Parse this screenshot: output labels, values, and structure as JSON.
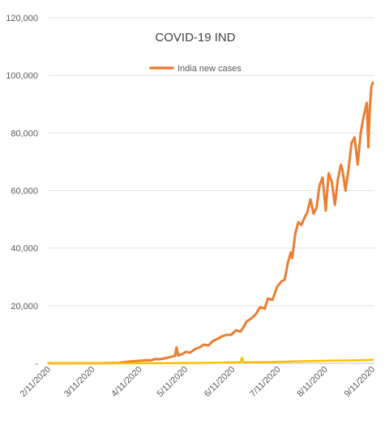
{
  "chart_data": {
    "type": "line",
    "title": "COVID-19 IND",
    "xlabel": "",
    "ylabel": "",
    "x_tick_labels": [
      "2/11/2020",
      "3/11/2020",
      "4/11/2020",
      "5/11/2020",
      "6/11/2020",
      "7/11/2020",
      "8/11/2020",
      "9/11/2020"
    ],
    "y_tick_labels": [
      "-",
      "20,000",
      "40,000",
      "60,000",
      "80,000",
      "100,000",
      "120,000"
    ],
    "ylim": [
      0,
      120000
    ],
    "xlim": [
      "2/11/2020",
      "9/12/2020"
    ],
    "grid": "horizontal",
    "legend": {
      "position": "top-center",
      "entries": [
        "India new cases"
      ]
    },
    "series": [
      {
        "name": "India new cases",
        "color": "#ED7D31",
        "points": [
          [
            "2/11/2020",
            0
          ],
          [
            "2/25/2020",
            0
          ],
          [
            "3/4/2020",
            20
          ],
          [
            "3/11/2020",
            10
          ],
          [
            "3/20/2020",
            50
          ],
          [
            "3/28/2020",
            150
          ],
          [
            "4/4/2020",
            600
          ],
          [
            "4/11/2020",
            900
          ],
          [
            "4/15/2020",
            1100
          ],
          [
            "4/18/2020",
            1000
          ],
          [
            "4/21/2020",
            1500
          ],
          [
            "4/24/2020",
            1400
          ],
          [
            "4/28/2020",
            1800
          ],
          [
            "5/1/2020",
            2200
          ],
          [
            "5/4/2020",
            2600
          ],
          [
            "5/5/2020",
            5500
          ],
          [
            "5/6/2020",
            2700
          ],
          [
            "5/9/2020",
            3200
          ],
          [
            "5/11/2020",
            4000
          ],
          [
            "5/14/2020",
            3700
          ],
          [
            "5/17/2020",
            4900
          ],
          [
            "5/20/2020",
            5500
          ],
          [
            "5/23/2020",
            6500
          ],
          [
            "5/26/2020",
            6200
          ],
          [
            "5/29/2020",
            7800
          ],
          [
            "6/1/2020",
            8500
          ],
          [
            "6/4/2020",
            9400
          ],
          [
            "6/7/2020",
            9900
          ],
          [
            "6/10/2020",
            9900
          ],
          [
            "6/13/2020",
            11500
          ],
          [
            "6/16/2020",
            11000
          ],
          [
            "6/18/2020",
            12500
          ],
          [
            "6/20/2020",
            14500
          ],
          [
            "6/23/2020",
            15500
          ],
          [
            "6/26/2020",
            17000
          ],
          [
            "6/29/2020",
            19500
          ],
          [
            "7/2/2020",
            19000
          ],
          [
            "7/4/2020",
            22500
          ],
          [
            "7/7/2020",
            22000
          ],
          [
            "7/10/2020",
            26500
          ],
          [
            "7/13/2020",
            28500
          ],
          [
            "7/15/2020",
            29000
          ],
          [
            "7/17/2020",
            34500
          ],
          [
            "7/19/2020",
            38500
          ],
          [
            "7/20/2020",
            36500
          ],
          [
            "7/22/2020",
            45000
          ],
          [
            "7/24/2020",
            49000
          ],
          [
            "7/26/2020",
            48000
          ],
          [
            "7/28/2020",
            50500
          ],
          [
            "7/30/2020",
            52500
          ],
          [
            "8/1/2020",
            57000
          ],
          [
            "8/3/2020",
            52000
          ],
          [
            "8/5/2020",
            54000
          ],
          [
            "8/7/2020",
            62000
          ],
          [
            "8/9/2020",
            64500
          ],
          [
            "8/11/2020",
            53000
          ],
          [
            "8/13/2020",
            66000
          ],
          [
            "8/15/2020",
            63000
          ],
          [
            "8/17/2020",
            55000
          ],
          [
            "8/19/2020",
            64000
          ],
          [
            "8/21/2020",
            69000
          ],
          [
            "8/22/2020",
            67000
          ],
          [
            "8/24/2020",
            60000
          ],
          [
            "8/26/2020",
            67500
          ],
          [
            "8/28/2020",
            76500
          ],
          [
            "8/30/2020",
            78500
          ],
          [
            "9/1/2020",
            69000
          ],
          [
            "9/3/2020",
            80000
          ],
          [
            "9/5/2020",
            86000
          ],
          [
            "9/7/2020",
            90500
          ],
          [
            "9/8/2020",
            75000
          ],
          [
            "9/9/2020",
            89000
          ],
          [
            "9/10/2020",
            96000
          ],
          [
            "9/11/2020",
            97500
          ]
        ]
      },
      {
        "name": "",
        "color": "#FFC000",
        "points": [
          [
            "2/11/2020",
            0
          ],
          [
            "3/11/2020",
            0
          ],
          [
            "4/1/2020",
            10
          ],
          [
            "4/15/2020",
            30
          ],
          [
            "5/1/2020",
            70
          ],
          [
            "5/15/2020",
            110
          ],
          [
            "6/1/2020",
            230
          ],
          [
            "6/16/2020",
            390
          ],
          [
            "6/17/2020",
            2000
          ],
          [
            "6/18/2020",
            350
          ],
          [
            "7/1/2020",
            430
          ],
          [
            "7/15/2020",
            560
          ],
          [
            "8/1/2020",
            780
          ],
          [
            "8/15/2020",
            950
          ],
          [
            "9/1/2020",
            1050
          ],
          [
            "9/11/2020",
            1200
          ]
        ]
      }
    ]
  }
}
